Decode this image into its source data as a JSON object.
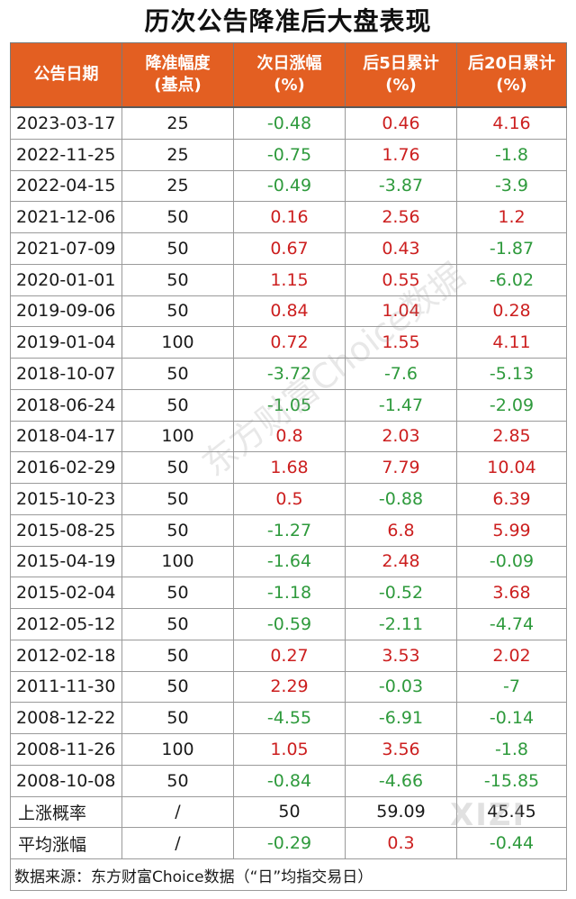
{
  "title": "历次公告降准后大盘表现",
  "headers": [
    "公告日期",
    "降准幅度\n(基点)",
    "次日涨幅\n(%)",
    "后5日累计\n(%)",
    "后20日累计\n(%)"
  ],
  "rows": [
    {
      "date": "2023-03-17",
      "cut": "25",
      "next_day": "-0.48",
      "day5": "0.46",
      "day20": "4.16"
    },
    {
      "date": "2022-11-25",
      "cut": "25",
      "next_day": "-0.75",
      "day5": "1.76",
      "day20": "-1.8"
    },
    {
      "date": "2022-04-15",
      "cut": "25",
      "next_day": "-0.49",
      "day5": "-3.87",
      "day20": "-3.9"
    },
    {
      "date": "2021-12-06",
      "cut": "50",
      "next_day": "0.16",
      "day5": "2.56",
      "day20": "1.2"
    },
    {
      "date": "2021-07-09",
      "cut": "50",
      "next_day": "0.67",
      "day5": "0.43",
      "day20": "-1.87"
    },
    {
      "date": "2020-01-01",
      "cut": "50",
      "next_day": "1.15",
      "day5": "0.55",
      "day20": "-6.02"
    },
    {
      "date": "2019-09-06",
      "cut": "50",
      "next_day": "0.84",
      "day5": "1.04",
      "day20": "0.28"
    },
    {
      "date": "2019-01-04",
      "cut": "100",
      "next_day": "0.72",
      "day5": "1.55",
      "day20": "4.11"
    },
    {
      "date": "2018-10-07",
      "cut": "50",
      "next_day": "-3.72",
      "day5": "-7.6",
      "day20": "-5.13"
    },
    {
      "date": "2018-06-24",
      "cut": "50",
      "next_day": "-1.05",
      "day5": "-1.47",
      "day20": "-2.09"
    },
    {
      "date": "2018-04-17",
      "cut": "100",
      "next_day": "0.8",
      "day5": "2.03",
      "day20": "2.85"
    },
    {
      "date": "2016-02-29",
      "cut": "50",
      "next_day": "1.68",
      "day5": "7.79",
      "day20": "10.04"
    },
    {
      "date": "2015-10-23",
      "cut": "50",
      "next_day": "0.5",
      "day5": "-0.88",
      "day20": "6.39"
    },
    {
      "date": "2015-08-25",
      "cut": "50",
      "next_day": "-1.27",
      "day5": "6.8",
      "day20": "5.99"
    },
    {
      "date": "2015-04-19",
      "cut": "100",
      "next_day": "-1.64",
      "day5": "2.48",
      "day20": "-0.09"
    },
    {
      "date": "2015-02-04",
      "cut": "50",
      "next_day": "-1.18",
      "day5": "-0.52",
      "day20": "3.68"
    },
    {
      "date": "2012-05-12",
      "cut": "50",
      "next_day": "-0.59",
      "day5": "-2.11",
      "day20": "-4.74"
    },
    {
      "date": "2012-02-18",
      "cut": "50",
      "next_day": "0.27",
      "day5": "3.53",
      "day20": "2.02"
    },
    {
      "date": "2011-11-30",
      "cut": "50",
      "next_day": "2.29",
      "day5": "-0.03",
      "day20": "-7"
    },
    {
      "date": "2008-12-22",
      "cut": "50",
      "next_day": "-4.55",
      "day5": "-6.91",
      "day20": "-0.14"
    },
    {
      "date": "2008-11-26",
      "cut": "100",
      "next_day": "1.05",
      "day5": "3.56",
      "day20": "-1.8"
    },
    {
      "date": "2008-10-08",
      "cut": "50",
      "next_day": "-0.84",
      "day5": "-4.66",
      "day20": "-15.85"
    }
  ],
  "summary": [
    {
      "label": "上涨概率",
      "cut": "/",
      "next_day": "50",
      "day5": "59.09",
      "day20": "45.45",
      "colored": false
    },
    {
      "label": "平均涨幅",
      "cut": "/",
      "next_day": "-0.29",
      "day5": "0.3",
      "day20": "-0.44",
      "colored": true
    }
  ],
  "source": "数据来源：东方财富Choice数据（“日”均指交易日）",
  "watermarks": [
    "东方财富Choice数据",
    "XIZI"
  ],
  "colors": {
    "header_bg": "#e35f22",
    "positive": "#cc1f1f",
    "negative": "#2e9a3c"
  }
}
